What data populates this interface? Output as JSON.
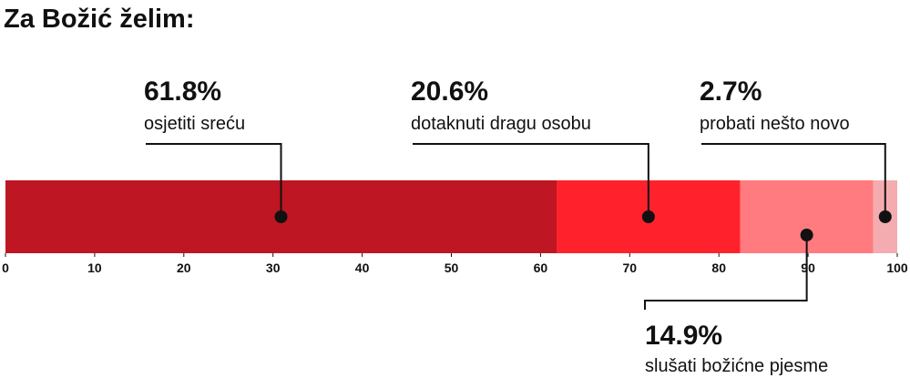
{
  "chart_data": {
    "type": "stacked_bar",
    "title": "Za Božić želim:",
    "categories": [
      "osjetiti sreću",
      "dotaknuti dragu osobu",
      "slušati božićne pjesme",
      "probati nešto novo"
    ],
    "values": [
      61.8,
      20.6,
      14.9,
      2.7
    ],
    "value_labels": [
      "61.8%",
      "20.6%",
      "14.9%",
      "2.7%"
    ],
    "colors": [
      "#be1622",
      "#ff222c",
      "#ff7b7f",
      "#f4acb0"
    ],
    "xlim": [
      0,
      100
    ],
    "xticks": [
      0,
      10,
      20,
      30,
      40,
      50,
      60,
      70,
      80,
      90,
      100
    ]
  }
}
